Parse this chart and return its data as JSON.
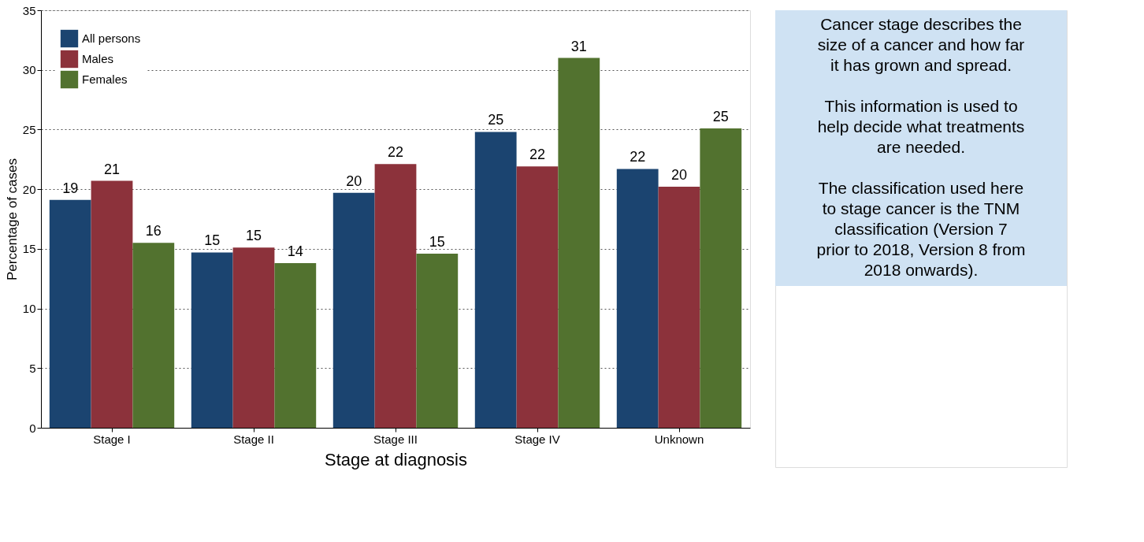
{
  "chart_data": {
    "type": "bar",
    "categories": [
      "Stage I",
      "Stage II",
      "Stage III",
      "Stage IV",
      "Unknown"
    ],
    "xlabel": "Stage at diagnosis",
    "ylabel": "Percentage of cases",
    "ylim": [
      0,
      35
    ],
    "yticks": [
      0,
      5,
      10,
      15,
      20,
      25,
      30,
      35
    ],
    "grid": "y",
    "legend": "top left",
    "series": [
      {
        "name": "All persons",
        "color": "#1b4470",
        "values": [
          19.1,
          14.7,
          19.7,
          24.8,
          21.7
        ],
        "value_labels": [
          "19",
          "15",
          "20",
          "25",
          "22"
        ]
      },
      {
        "name": "Males",
        "color": "#8c323b",
        "values": [
          20.7,
          15.1,
          22.1,
          21.9,
          20.2
        ],
        "value_labels": [
          "21",
          "15",
          "22",
          "22",
          "20"
        ]
      },
      {
        "name": "Females",
        "color": "#52722f",
        "values": [
          15.5,
          13.8,
          14.6,
          31.0,
          25.1
        ],
        "value_labels": [
          "16",
          "14",
          "15",
          "31",
          "25"
        ]
      }
    ],
    "annotations": [
      "Cancer stage describes the size of a cancer and how far it has grown and spread.",
      "This information is used to help decide what treatments are needed.",
      "The classification used here to stage cancer is the TNM classification (Version 7 prior to 2018, Version 8 from 2018 onwards)."
    ]
  }
}
